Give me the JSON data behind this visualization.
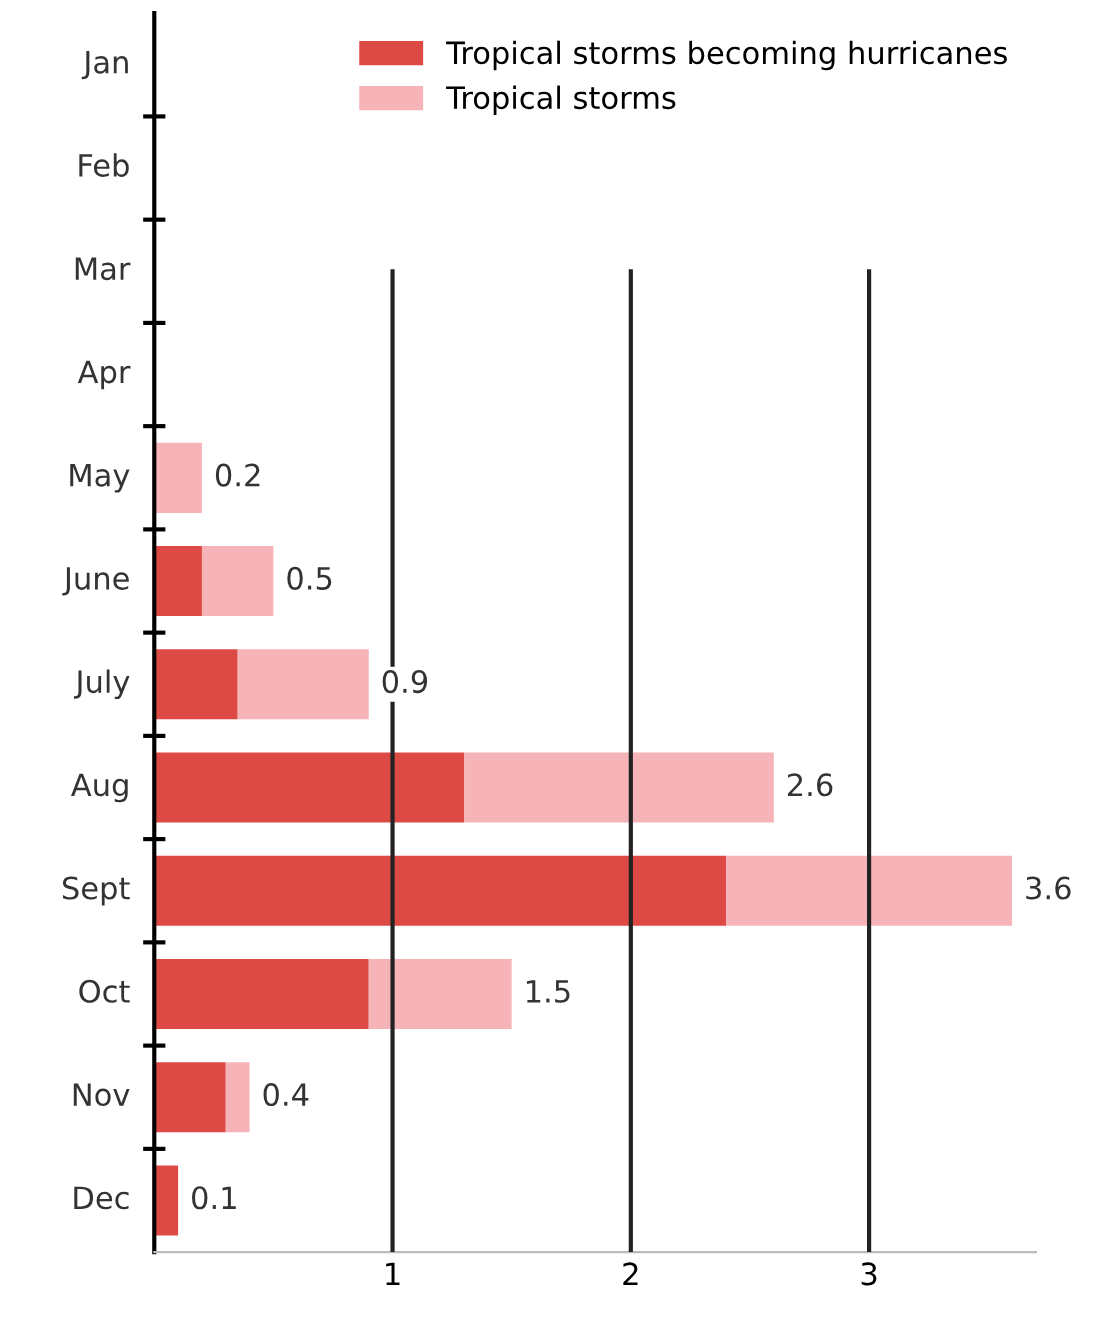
{
  "chart_data": {
    "type": "bar",
    "orientation": "horizontal",
    "stacked": true,
    "categories": [
      "Jan",
      "Feb",
      "Mar",
      "Apr",
      "May",
      "June",
      "July",
      "Aug",
      "Sept",
      "Oct",
      "Nov",
      "Dec"
    ],
    "series": [
      {
        "name": "Tropical storms becoming hurricanes",
        "color": "#dd4a45",
        "values": [
          null,
          null,
          null,
          null,
          0,
          0.2,
          0.35,
          1.3,
          2.4,
          0.9,
          0.3,
          0.1
        ]
      },
      {
        "name": "Tropical storms",
        "color": "#f6b4b8",
        "values": [
          null,
          null,
          null,
          null,
          0.2,
          0.3,
          0.55,
          1.3,
          1.2,
          0.6,
          0.1,
          0
        ]
      }
    ],
    "totals": [
      null,
      null,
      null,
      null,
      "0.2",
      "0.5",
      "0.9",
      "2.6",
      "3.6",
      "1.5",
      "0.4",
      "0.1"
    ],
    "xlim": [
      0,
      3.7
    ],
    "xticks": [
      1,
      2,
      3
    ],
    "grid": "x",
    "legend": "top right"
  }
}
